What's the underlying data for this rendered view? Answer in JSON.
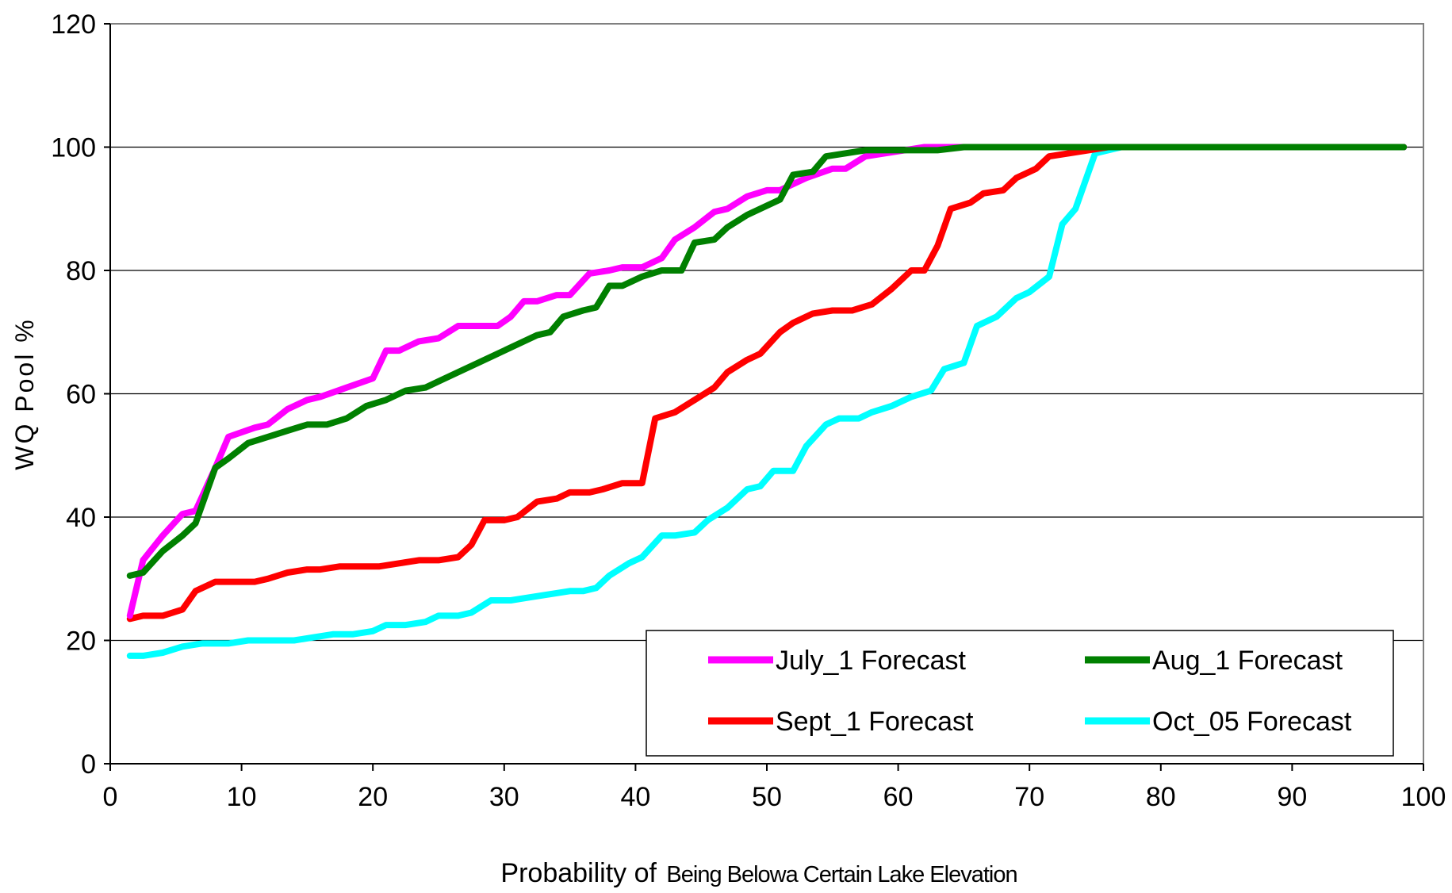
{
  "chart_data": {
    "type": "line",
    "title": "",
    "xlabel": "Probability of Being Below a Certain Lake Elevation",
    "xlabel_prefix": "Probability of",
    "xlabel_suffix": "Being Belowa Certain Lake Elevation",
    "ylabel": "WQ Pool %",
    "xlim": [
      0,
      100
    ],
    "ylim": [
      0,
      120
    ],
    "x_ticks": [
      0,
      10,
      20,
      30,
      40,
      50,
      60,
      70,
      80,
      90,
      100
    ],
    "y_ticks": [
      0,
      20,
      40,
      60,
      80,
      100,
      120
    ],
    "grid": "horizontal",
    "legend_position": "bottom-right",
    "series": [
      {
        "name": "July_1 Forecast",
        "color": "#ff00ff",
        "points": [
          [
            1.5,
            24
          ],
          [
            2.5,
            33
          ],
          [
            4,
            37
          ],
          [
            5.5,
            40.5
          ],
          [
            6.5,
            41
          ],
          [
            8,
            48
          ],
          [
            9,
            53
          ],
          [
            11,
            54.5
          ],
          [
            12,
            55
          ],
          [
            13.5,
            57.5
          ],
          [
            15,
            59
          ],
          [
            16,
            59.5
          ],
          [
            18,
            61
          ],
          [
            20,
            62.5
          ],
          [
            21,
            67
          ],
          [
            22,
            67
          ],
          [
            23.5,
            68.5
          ],
          [
            25,
            69
          ],
          [
            26.5,
            71
          ],
          [
            28,
            71
          ],
          [
            29.5,
            71
          ],
          [
            30.5,
            72.5
          ],
          [
            31.5,
            75
          ],
          [
            32.5,
            75
          ],
          [
            34,
            76
          ],
          [
            35,
            76
          ],
          [
            36.5,
            79.5
          ],
          [
            38,
            80
          ],
          [
            39,
            80.5
          ],
          [
            40.5,
            80.5
          ],
          [
            42,
            82
          ],
          [
            43,
            85
          ],
          [
            44.5,
            87
          ],
          [
            46,
            89.5
          ],
          [
            47,
            90
          ],
          [
            48.5,
            92
          ],
          [
            50,
            93
          ],
          [
            51,
            93
          ],
          [
            53,
            95
          ],
          [
            55,
            96.5
          ],
          [
            56,
            96.5
          ],
          [
            57.5,
            98.5
          ],
          [
            59,
            99
          ],
          [
            60.5,
            99.5
          ],
          [
            62,
            100
          ],
          [
            66,
            100
          ],
          [
            98.5,
            100
          ]
        ]
      },
      {
        "name": "Aug_1 Forecast",
        "color": "#008000",
        "points": [
          [
            1.5,
            30.5
          ],
          [
            2.5,
            31
          ],
          [
            4,
            34.5
          ],
          [
            5.5,
            37
          ],
          [
            6.5,
            39
          ],
          [
            8,
            48
          ],
          [
            9,
            49.5
          ],
          [
            10.5,
            52
          ],
          [
            12,
            53
          ],
          [
            13.5,
            54
          ],
          [
            15,
            55
          ],
          [
            16.5,
            55
          ],
          [
            18,
            56
          ],
          [
            19.5,
            58
          ],
          [
            21,
            59
          ],
          [
            22.5,
            60.5
          ],
          [
            24,
            61
          ],
          [
            25,
            62
          ],
          [
            26.5,
            63.5
          ],
          [
            28,
            65
          ],
          [
            29.5,
            66.5
          ],
          [
            31,
            68
          ],
          [
            32.5,
            69.5
          ],
          [
            33.5,
            70
          ],
          [
            34.5,
            72.5
          ],
          [
            36,
            73.5
          ],
          [
            37,
            74
          ],
          [
            38,
            77.5
          ],
          [
            39,
            77.5
          ],
          [
            40.5,
            79
          ],
          [
            42,
            80
          ],
          [
            43.5,
            80
          ],
          [
            44.5,
            84.5
          ],
          [
            46,
            85
          ],
          [
            47,
            87
          ],
          [
            48.5,
            89
          ],
          [
            50,
            90.5
          ],
          [
            51,
            91.5
          ],
          [
            52,
            95.5
          ],
          [
            53.5,
            96
          ],
          [
            54.5,
            98.5
          ],
          [
            56,
            99
          ],
          [
            57.5,
            99.5
          ],
          [
            59,
            99.5
          ],
          [
            61,
            99.5
          ],
          [
            63,
            99.5
          ],
          [
            65,
            100
          ],
          [
            98.5,
            100
          ]
        ]
      },
      {
        "name": "Sept_1 Forecast",
        "color": "#ff0000",
        "points": [
          [
            1.5,
            23.5
          ],
          [
            2.5,
            24
          ],
          [
            4,
            24
          ],
          [
            5.5,
            25
          ],
          [
            6.5,
            28
          ],
          [
            8,
            29.5
          ],
          [
            9.5,
            29.5
          ],
          [
            11,
            29.5
          ],
          [
            12,
            30
          ],
          [
            13.5,
            31
          ],
          [
            15,
            31.5
          ],
          [
            16,
            31.5
          ],
          [
            17.5,
            32
          ],
          [
            19,
            32
          ],
          [
            20.5,
            32
          ],
          [
            22,
            32.5
          ],
          [
            23.5,
            33
          ],
          [
            25,
            33
          ],
          [
            26.5,
            33.5
          ],
          [
            27.5,
            35.5
          ],
          [
            28.5,
            39.5
          ],
          [
            30,
            39.5
          ],
          [
            31,
            40
          ],
          [
            32.5,
            42.5
          ],
          [
            34,
            43
          ],
          [
            35,
            44
          ],
          [
            36.5,
            44
          ],
          [
            37.5,
            44.5
          ],
          [
            39,
            45.5
          ],
          [
            40.5,
            45.5
          ],
          [
            41.5,
            56
          ],
          [
            43,
            57
          ],
          [
            44.5,
            59
          ],
          [
            46,
            61
          ],
          [
            47,
            63.5
          ],
          [
            48.5,
            65.5
          ],
          [
            49.5,
            66.5
          ],
          [
            51,
            70
          ],
          [
            52,
            71.5
          ],
          [
            53.5,
            73
          ],
          [
            55,
            73.5
          ],
          [
            56.5,
            73.5
          ],
          [
            58,
            74.5
          ],
          [
            59.5,
            77
          ],
          [
            61,
            80
          ],
          [
            62,
            80
          ],
          [
            63,
            84
          ],
          [
            64,
            90
          ],
          [
            65.5,
            91
          ],
          [
            66.5,
            92.5
          ],
          [
            68,
            93
          ],
          [
            69,
            95
          ],
          [
            70.5,
            96.5
          ],
          [
            71.5,
            98.5
          ],
          [
            73,
            99
          ],
          [
            74.5,
            99.5
          ],
          [
            76,
            100
          ],
          [
            98.5,
            100
          ]
        ]
      },
      {
        "name": "Oct_05 Forecast",
        "color": "#00ffff",
        "points": [
          [
            1.5,
            17.5
          ],
          [
            2.5,
            17.5
          ],
          [
            4,
            18
          ],
          [
            5.5,
            19
          ],
          [
            7,
            19.5
          ],
          [
            9,
            19.5
          ],
          [
            10.5,
            20
          ],
          [
            12,
            20
          ],
          [
            14,
            20
          ],
          [
            15.5,
            20.5
          ],
          [
            17,
            21
          ],
          [
            18.5,
            21
          ],
          [
            20,
            21.5
          ],
          [
            21,
            22.5
          ],
          [
            22.5,
            22.5
          ],
          [
            24,
            23
          ],
          [
            25,
            24
          ],
          [
            26.5,
            24
          ],
          [
            27.5,
            24.5
          ],
          [
            29,
            26.5
          ],
          [
            30.5,
            26.5
          ],
          [
            32,
            27
          ],
          [
            33.5,
            27.5
          ],
          [
            35,
            28
          ],
          [
            36,
            28
          ],
          [
            37,
            28.5
          ],
          [
            38,
            30.5
          ],
          [
            39.5,
            32.5
          ],
          [
            40.5,
            33.5
          ],
          [
            42,
            37
          ],
          [
            43,
            37
          ],
          [
            44.5,
            37.5
          ],
          [
            45.5,
            39.5
          ],
          [
            47,
            41.5
          ],
          [
            48.5,
            44.5
          ],
          [
            49.5,
            45
          ],
          [
            50.5,
            47.5
          ],
          [
            52,
            47.5
          ],
          [
            53,
            51.5
          ],
          [
            54.5,
            55
          ],
          [
            55.5,
            56
          ],
          [
            57,
            56
          ],
          [
            58,
            57
          ],
          [
            59.5,
            58
          ],
          [
            61,
            59.5
          ],
          [
            62.5,
            60.5
          ],
          [
            63.5,
            64
          ],
          [
            65,
            65
          ],
          [
            66,
            71
          ],
          [
            67.5,
            72.5
          ],
          [
            69,
            75.5
          ],
          [
            70,
            76.5
          ],
          [
            71.5,
            79
          ],
          [
            72.5,
            87.5
          ],
          [
            73.5,
            90
          ],
          [
            75,
            99
          ],
          [
            76,
            99.5
          ],
          [
            77,
            100
          ],
          [
            98.5,
            100
          ]
        ]
      }
    ]
  }
}
